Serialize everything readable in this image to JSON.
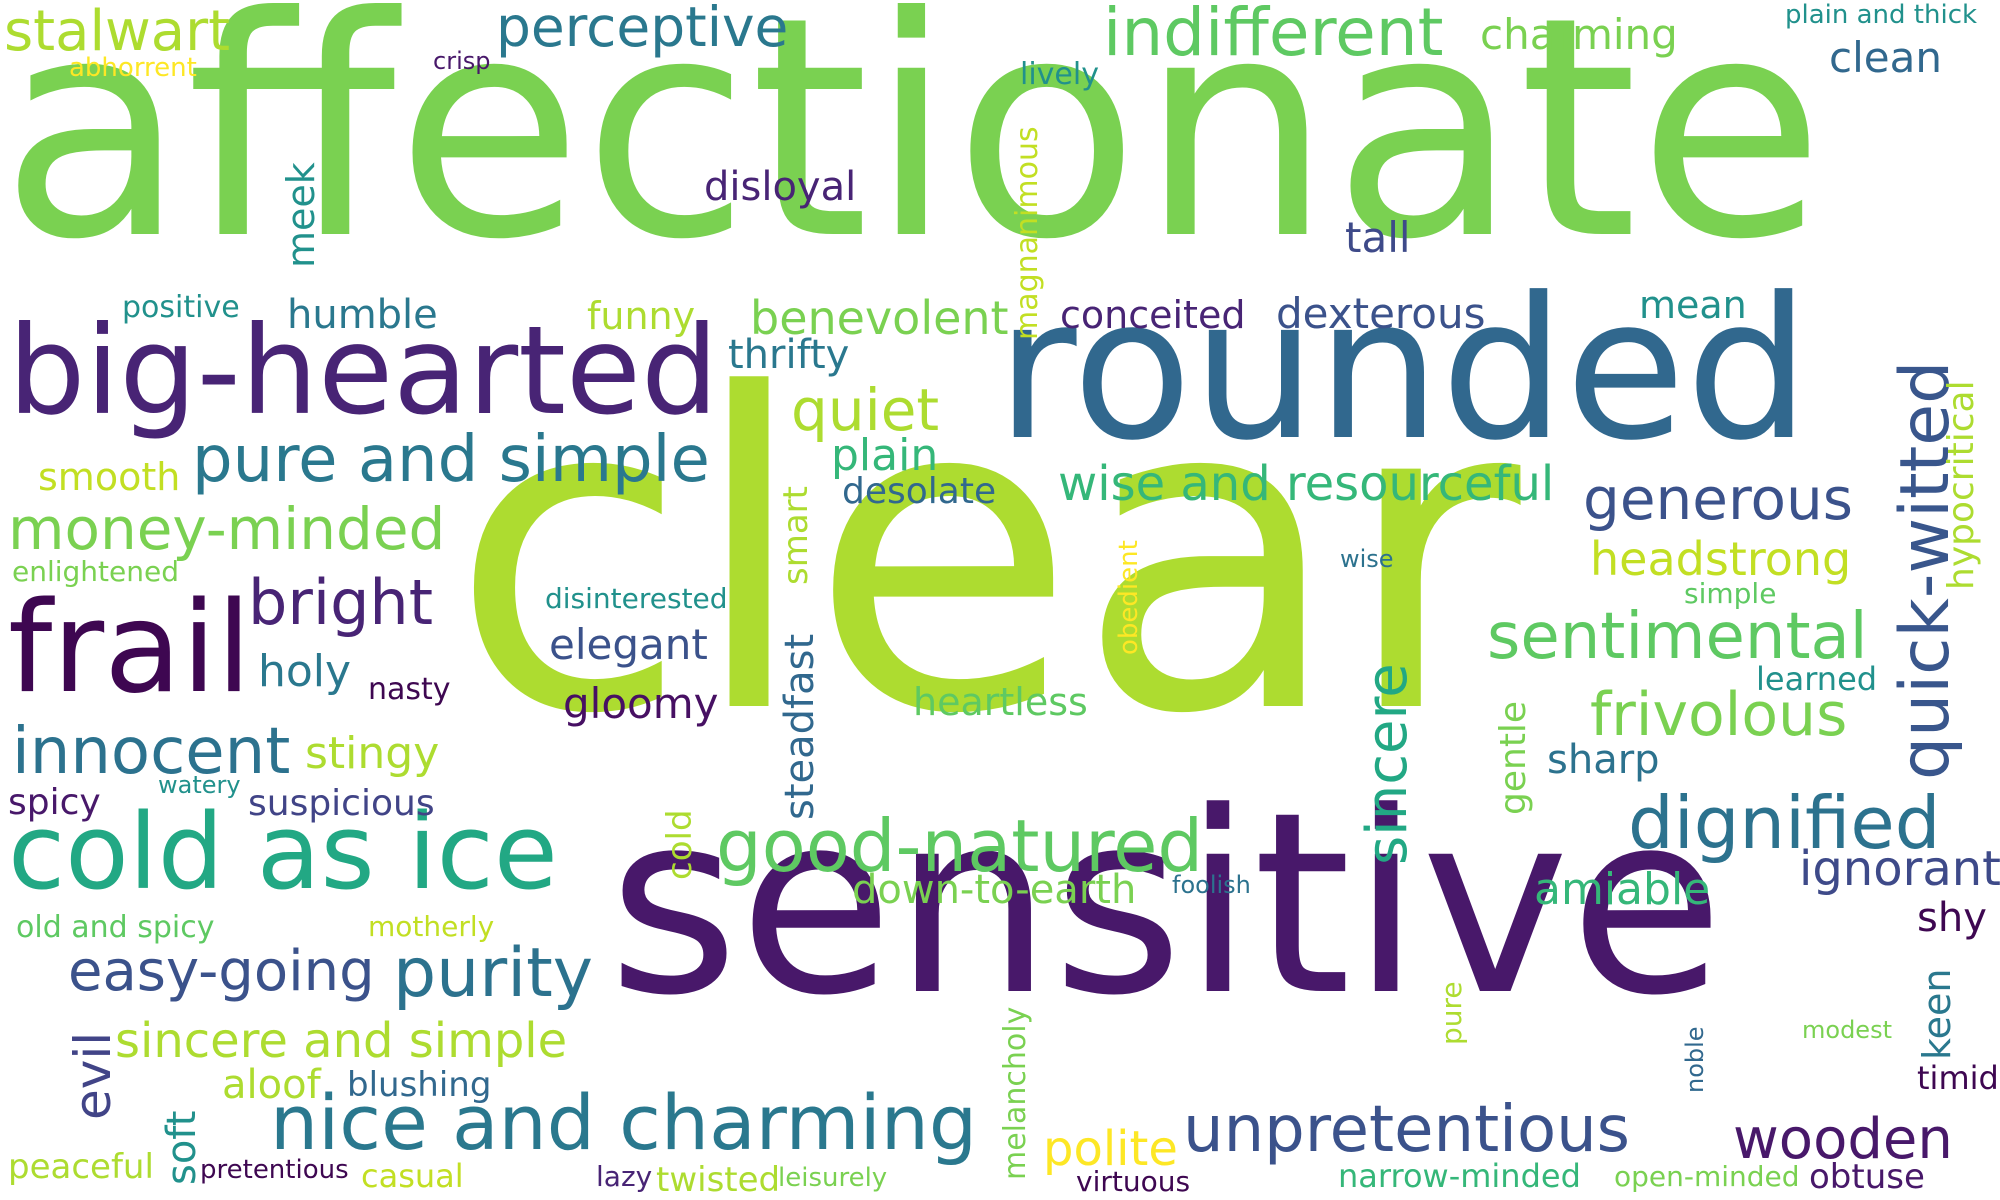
{
  "words": [
    {
      "text": "affectionate",
      "color": "#7ad151"
    },
    {
      "text": "clear",
      "color": "#addc30"
    },
    {
      "text": "sensitive",
      "color": "#48186a"
    },
    {
      "text": "rounded",
      "color": "#31688e"
    },
    {
      "text": "big-hearted",
      "color": "#482475"
    },
    {
      "text": "cold as ice",
      "color": "#22a884"
    },
    {
      "text": "frail",
      "color": "#3e0751"
    },
    {
      "text": "nice and charming",
      "color": "#2a788e"
    },
    {
      "text": "quick-witted",
      "color": "#39568c"
    },
    {
      "text": "good-natured",
      "color": "#5ec962"
    },
    {
      "text": "dignified",
      "color": "#2c728e"
    },
    {
      "text": "unpretentious",
      "color": "#3b528b"
    },
    {
      "text": "indifferent",
      "color": "#5ec962"
    },
    {
      "text": "pure and simple",
      "color": "#2a788e"
    },
    {
      "text": "perceptive",
      "color": "#2a788e"
    },
    {
      "text": "stalwart",
      "color": "#addc30"
    },
    {
      "text": "sentimental",
      "color": "#5ec962"
    },
    {
      "text": "innocent",
      "color": "#2c728e"
    },
    {
      "text": "purity",
      "color": "#2c728e"
    },
    {
      "text": "money-minded",
      "color": "#7ad151"
    },
    {
      "text": "generous",
      "color": "#3b528b"
    },
    {
      "text": "frivolous",
      "color": "#7ad151"
    },
    {
      "text": "wooden",
      "color": "#48186a"
    },
    {
      "text": "bright",
      "color": "#482475"
    },
    {
      "text": "sincere",
      "color": "#22a884"
    },
    {
      "text": "easy-going",
      "color": "#3b528b"
    },
    {
      "text": "wise and resourceful",
      "color": "#35b779"
    },
    {
      "text": "headstrong",
      "color": "#c2df23"
    },
    {
      "text": "ignorant",
      "color": "#3e4a89"
    },
    {
      "text": "quiet",
      "color": "#addc30"
    },
    {
      "text": "steadfast",
      "color": "#31688e"
    },
    {
      "text": "sincere and simple",
      "color": "#addc30"
    },
    {
      "text": "polite",
      "color": "#fde725"
    },
    {
      "text": "benevolent",
      "color": "#7ad151"
    },
    {
      "text": "clean",
      "color": "#31688e"
    },
    {
      "text": "charming",
      "color": "#7ad151"
    },
    {
      "text": "evil",
      "color": "#414487"
    },
    {
      "text": "dexterous",
      "color": "#3b528b"
    },
    {
      "text": "amiable",
      "color": "#35b779"
    },
    {
      "text": "humble",
      "color": "#2a788e"
    },
    {
      "text": "elegant",
      "color": "#3b528b"
    },
    {
      "text": "gloomy",
      "color": "#471063"
    },
    {
      "text": "disloyal",
      "color": "#482475"
    },
    {
      "text": "plain",
      "color": "#35b779"
    },
    {
      "text": "heartless",
      "color": "#5ec962"
    },
    {
      "text": "down-to-earth",
      "color": "#7ad151"
    },
    {
      "text": "hypocritical",
      "color": "#addc30"
    },
    {
      "text": "tall",
      "color": "#3e4a89"
    },
    {
      "text": "stingy",
      "color": "#addc30"
    },
    {
      "text": "holy",
      "color": "#2a788e"
    },
    {
      "text": "suspicious",
      "color": "#414487"
    },
    {
      "text": "thrifty",
      "color": "#2a788e"
    },
    {
      "text": "desolate",
      "color": "#31688e"
    },
    {
      "text": "funny",
      "color": "#addc30"
    },
    {
      "text": "conceited",
      "color": "#482475"
    },
    {
      "text": "mean",
      "color": "#21918c"
    },
    {
      "text": "meek",
      "color": "#21918c"
    },
    {
      "text": "soft",
      "color": "#21918c"
    },
    {
      "text": "aloof",
      "color": "#addc30"
    },
    {
      "text": "blushing",
      "color": "#31688e"
    },
    {
      "text": "smooth",
      "color": "#c2df23"
    },
    {
      "text": "sharp",
      "color": "#2c728e"
    },
    {
      "text": "gentle",
      "color": "#7ad151"
    },
    {
      "text": "keen",
      "color": "#2a788e"
    },
    {
      "text": "shy",
      "color": "#3e0751"
    },
    {
      "text": "spicy",
      "color": "#48186a"
    },
    {
      "text": "smart",
      "color": "#addc30"
    },
    {
      "text": "cold",
      "color": "#addc30"
    },
    {
      "text": "magnanimous",
      "color": "#c2df23"
    },
    {
      "text": "melancholy",
      "color": "#7ad151"
    },
    {
      "text": "peaceful",
      "color": "#addc30"
    },
    {
      "text": "casual",
      "color": "#c2df23"
    },
    {
      "text": "twisted",
      "color": "#addc30"
    },
    {
      "text": "narrow-minded",
      "color": "#35b779"
    },
    {
      "text": "obtuse",
      "color": "#48186a"
    },
    {
      "text": "timid",
      "color": "#3e0751"
    },
    {
      "text": "learned",
      "color": "#21918c"
    },
    {
      "text": "positive",
      "color": "#21918c"
    },
    {
      "text": "lively",
      "color": "#21918c"
    },
    {
      "text": "old and spicy",
      "color": "#5ec962"
    },
    {
      "text": "pure",
      "color": "#addc30"
    },
    {
      "text": "enlightened",
      "color": "#7ad151"
    },
    {
      "text": "disinterested",
      "color": "#21918c"
    },
    {
      "text": "open-minded",
      "color": "#7ad151"
    },
    {
      "text": "virtuous",
      "color": "#3e0751"
    },
    {
      "text": "motherly",
      "color": "#c2df23"
    },
    {
      "text": "nasty",
      "color": "#3e0751"
    },
    {
      "text": "simple",
      "color": "#5ec962"
    },
    {
      "text": "leisurely",
      "color": "#7ad151"
    },
    {
      "text": "lazy",
      "color": "#482475"
    },
    {
      "text": "pretentious",
      "color": "#3e0751"
    },
    {
      "text": "abhorrent",
      "color": "#fde725"
    },
    {
      "text": "crisp",
      "color": "#48186a"
    },
    {
      "text": "watery",
      "color": "#21918c"
    },
    {
      "text": "wise",
      "color": "#2c728e"
    },
    {
      "text": "foolish",
      "color": "#2c728e"
    },
    {
      "text": "obedient",
      "color": "#fde725"
    },
    {
      "text": "noble",
      "color": "#31688e"
    },
    {
      "text": "modest",
      "color": "#7ad151"
    },
    {
      "text": "plain and thick",
      "color": "#21918c"
    }
  ]
}
